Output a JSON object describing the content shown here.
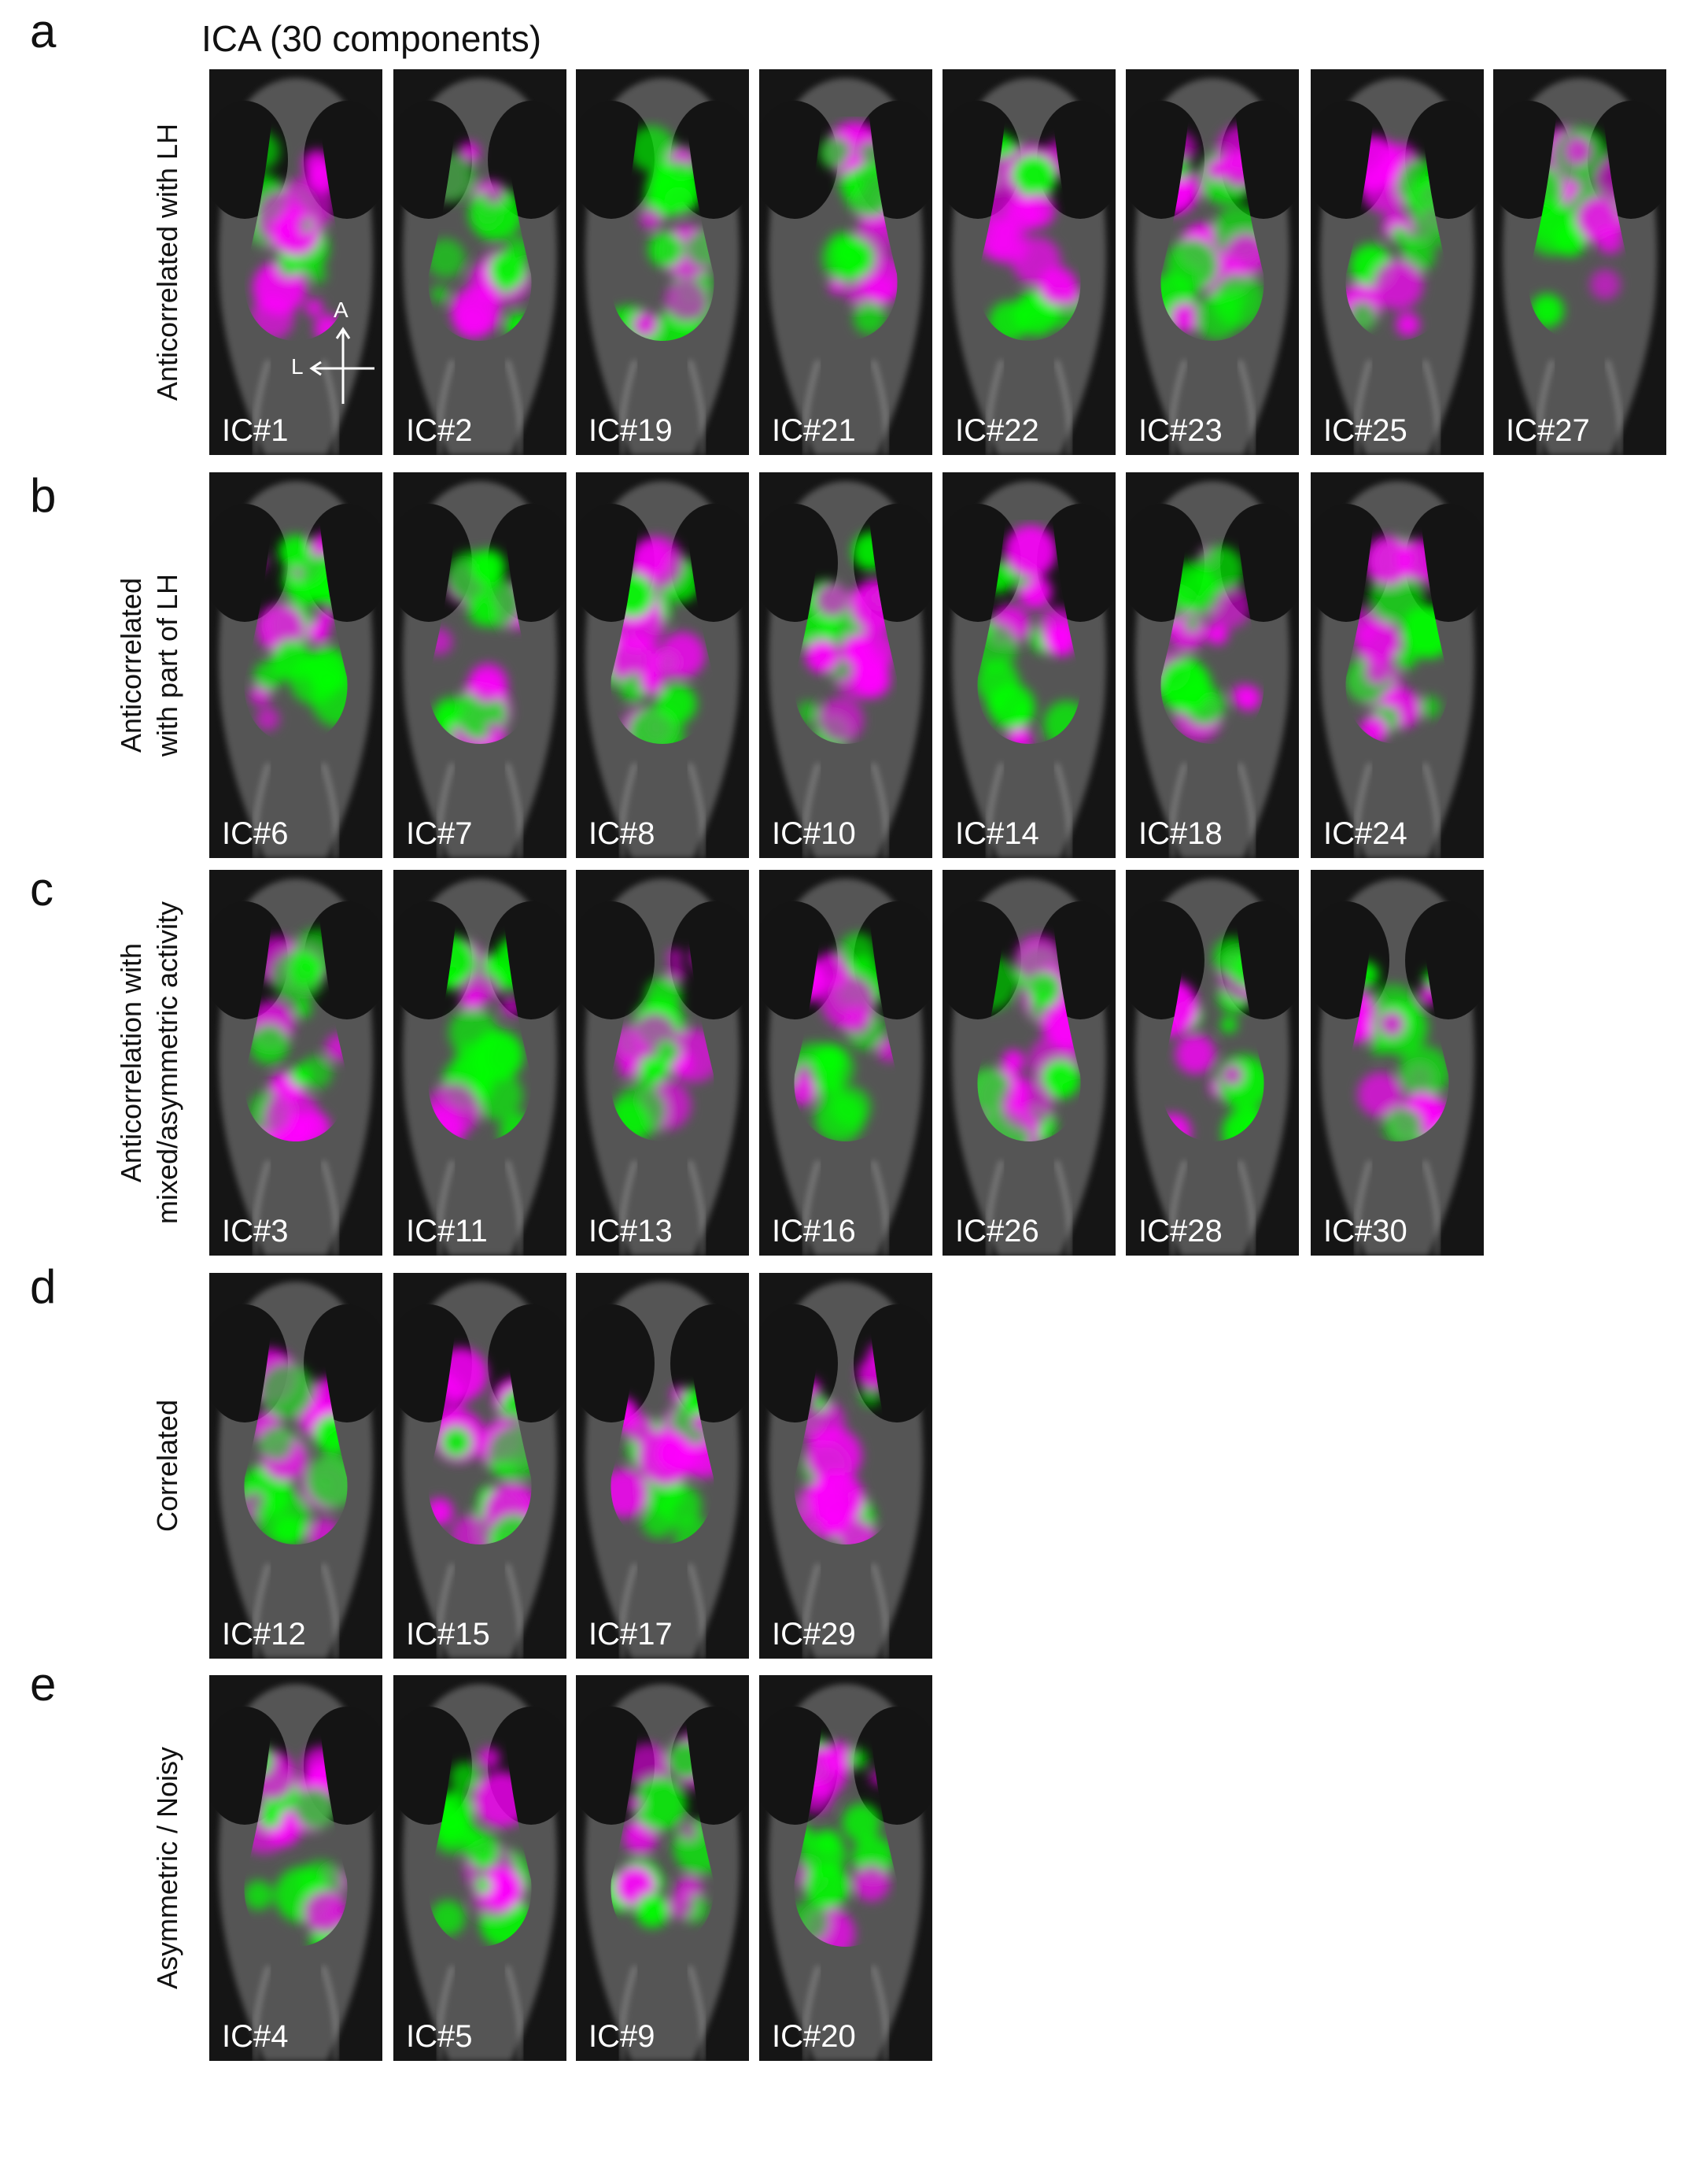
{
  "title": "ICA (30 components)",
  "compass": {
    "anterior": "A",
    "lateral": "L"
  },
  "colors": {
    "positive": "#ff00ff",
    "negative": "#00ff00",
    "background": "#151515"
  },
  "rows": [
    {
      "letter": "a",
      "label_lines": [
        "Anticorrelated with LH"
      ],
      "panels": [
        "IC#1",
        "IC#2",
        "IC#19",
        "IC#21",
        "IC#22",
        "IC#23",
        "IC#25",
        "IC#27"
      ]
    },
    {
      "letter": "b",
      "label_lines": [
        "Anticorrelated",
        "with part of LH"
      ],
      "panels": [
        "IC#6",
        "IC#7",
        "IC#8",
        "IC#10",
        "IC#14",
        "IC#18",
        "IC#24"
      ]
    },
    {
      "letter": "c",
      "label_lines": [
        "Anticorrelation with",
        "mixed/asymmetric activity"
      ],
      "panels": [
        "IC#3",
        "IC#11",
        "IC#13",
        "IC#16",
        "IC#26",
        "IC#28",
        "IC#30"
      ]
    },
    {
      "letter": "d",
      "label_lines": [
        "Correlated"
      ],
      "panels": [
        "IC#12",
        "IC#15",
        "IC#17",
        "IC#29"
      ]
    },
    {
      "letter": "e",
      "label_lines": [
        "Asymmetric / Noisy"
      ],
      "panels": [
        "IC#4",
        "IC#5",
        "IC#9",
        "IC#20"
      ]
    }
  ]
}
